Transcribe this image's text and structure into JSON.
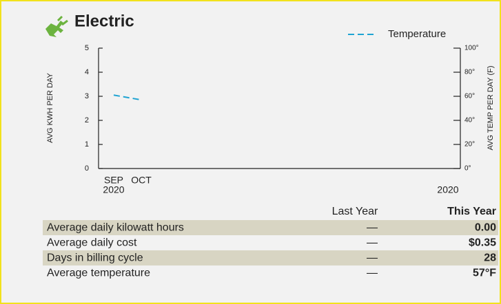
{
  "chart_data": {
    "type": "line",
    "title": "Electric",
    "ylabel": "AVG KWH PER DAY",
    "y2label": "AVG TEMP PER DAY (F)",
    "categories": [
      "SEP",
      "OCT"
    ],
    "year_labels": [
      "2020",
      "2020"
    ],
    "ylim": [
      0,
      5
    ],
    "yticks": [
      0,
      1,
      2,
      3,
      4,
      5
    ],
    "y2lim": [
      0,
      100
    ],
    "y2ticks": [
      {
        "value": 0,
        "label": "0°"
      },
      {
        "value": 20,
        "label": "20°"
      },
      {
        "value": 40,
        "label": "40°"
      },
      {
        "value": 60,
        "label": "60°"
      },
      {
        "value": 80,
        "label": "80°"
      },
      {
        "value": 100,
        "label": "100°"
      }
    ],
    "series": [
      {
        "name": "Temperature",
        "color": "#1ea3d2",
        "values": [
          61,
          57
        ],
        "axis": "y2"
      }
    ],
    "legend": "top-right"
  },
  "table": {
    "columns": [
      "Last Year",
      "This Year"
    ],
    "rows": [
      [
        "Average daily kilowatt hours",
        "—",
        "0.00"
      ],
      [
        "Average daily cost",
        "—",
        "$0.35"
      ],
      [
        "Days in billing cycle",
        "—",
        "28"
      ],
      [
        "Average temperature",
        "—",
        "57°F"
      ]
    ]
  }
}
